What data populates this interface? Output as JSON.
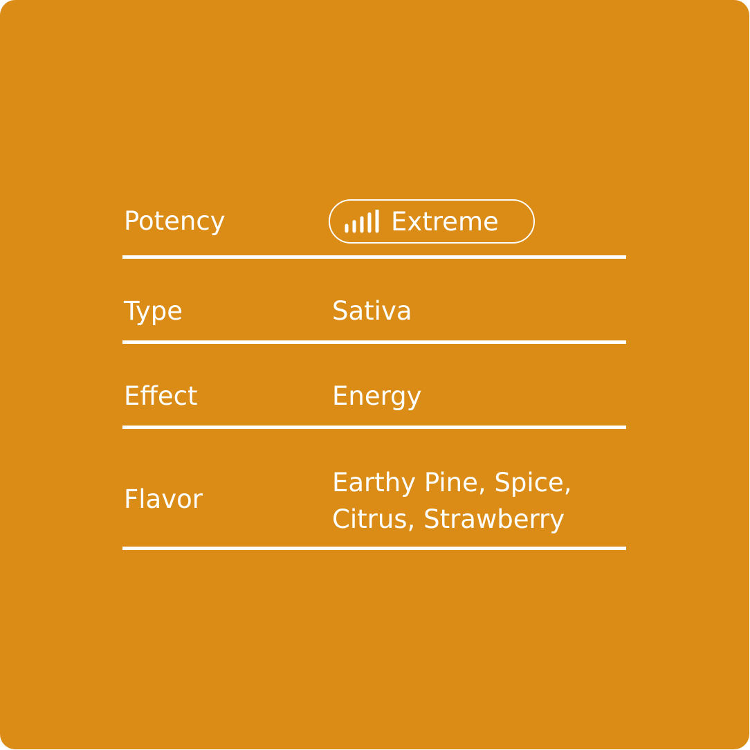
{
  "colors": {
    "background": "#DB8C16",
    "foreground": "#FFFFFF"
  },
  "rows": [
    {
      "label": "Potency",
      "value": "Extreme",
      "icon": "signal-bars-icon",
      "level": 5,
      "level_max": 5
    },
    {
      "label": "Type",
      "value": "Sativa"
    },
    {
      "label": "Effect",
      "value": "Energy"
    },
    {
      "label": "Flavor",
      "value_lines": [
        "Earthy Pine, Spice,",
        "Citrus, Strawberry"
      ]
    }
  ]
}
